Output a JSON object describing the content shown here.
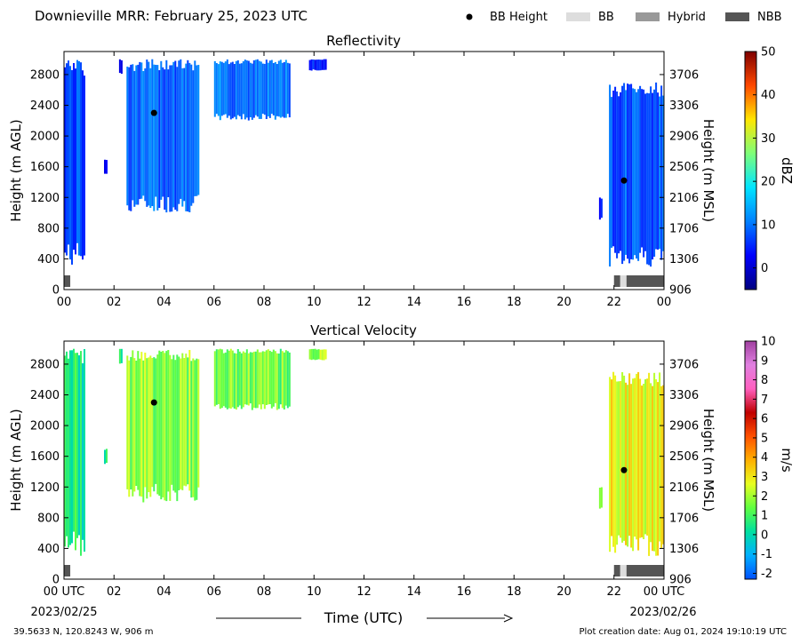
{
  "header": {
    "title": "Downieville MRR:  February 25, 2023 UTC",
    "legend": [
      {
        "label": "BB Height",
        "kind": "dot",
        "color": "#000000"
      },
      {
        "label": "BB",
        "kind": "box",
        "color": "#dddddd"
      },
      {
        "label": "Hybrid",
        "kind": "box",
        "color": "#999999"
      },
      {
        "label": "NBB",
        "kind": "box",
        "color": "#555555"
      }
    ]
  },
  "footer": {
    "location": "39.5633 N, 120.8243 W, 906 m",
    "created": "Plot creation date: Aug 01, 2024 19:10:19 UTC",
    "time_label": "Time (UTC)",
    "start_date": "2023/02/25",
    "end_date": "2023/02/26"
  },
  "colors": {
    "reflectivity_ramp": [
      "#00007f",
      "#0000ff",
      "#0080ff",
      "#00e5ff",
      "#7dff7a",
      "#ffe600",
      "#ff4800",
      "#7f0000"
    ],
    "velocity_ramp": [
      "#0050ff",
      "#00b0ff",
      "#00e0a0",
      "#60ff40",
      "#e8ff20",
      "#ffb000",
      "#ff5000",
      "#c00000",
      "#ff60c0",
      "#e080e0",
      "#a040a0"
    ]
  },
  "chart_data": [
    {
      "type": "heatmap",
      "title": "Reflectivity",
      "ylabel": "Height (m AGL)",
      "ylabel_right": "Height (m MSL)",
      "xlim": [
        0,
        24
      ],
      "ylim": [
        0,
        3100
      ],
      "xticks": [
        "00",
        "02",
        "04",
        "06",
        "08",
        "10",
        "12",
        "14",
        "16",
        "18",
        "20",
        "22",
        "00"
      ],
      "yticks": [
        0,
        400,
        800,
        1200,
        1600,
        2000,
        2400,
        2800
      ],
      "yticks_right": [
        "906",
        "1306",
        "1706",
        "2106",
        "2506",
        "2906",
        "3306",
        "3706"
      ],
      "colorbar": {
        "label": "dBZ",
        "min": -5,
        "max": 50,
        "ticks": [
          50,
          40,
          30,
          20,
          10,
          0
        ]
      },
      "regions": [
        {
          "x0": 0.0,
          "x1": 0.8,
          "y0": 300,
          "y1": 3000,
          "value": 7
        },
        {
          "x0": 1.6,
          "x1": 1.7,
          "y0": 1500,
          "y1": 1700,
          "value": 4
        },
        {
          "x0": 2.2,
          "x1": 2.3,
          "y0": 2800,
          "y1": 3000,
          "value": 3
        },
        {
          "x0": 2.5,
          "x1": 5.4,
          "y0": 1000,
          "y1": 3000,
          "value": 9
        },
        {
          "x0": 6.0,
          "x1": 9.0,
          "y0": 2200,
          "y1": 3000,
          "value": 10
        },
        {
          "x0": 9.8,
          "x1": 10.5,
          "y0": 2850,
          "y1": 3000,
          "value": 5
        },
        {
          "x0": 21.4,
          "x1": 21.5,
          "y0": 900,
          "y1": 1200,
          "value": 3
        },
        {
          "x0": 21.8,
          "x1": 24.0,
          "y0": 300,
          "y1": 2700,
          "value": 8
        }
      ],
      "bb_height": [
        {
          "x": 3.6,
          "y": 2300
        },
        {
          "x": 22.4,
          "y": 1420
        }
      ],
      "bb_class": [
        {
          "x0": 0.0,
          "x1": 0.25,
          "class": "NBB"
        },
        {
          "x0": 22.0,
          "x1": 22.25,
          "class": "NBB"
        },
        {
          "x0": 22.25,
          "x1": 22.5,
          "class": "BB"
        },
        {
          "x0": 22.5,
          "x1": 24.0,
          "class": "NBB"
        }
      ]
    },
    {
      "type": "heatmap",
      "title": "Vertical Velocity",
      "ylabel": "Height (m AGL)",
      "ylabel_right": "Height (m MSL)",
      "xlim": [
        0,
        24
      ],
      "ylim": [
        0,
        3100
      ],
      "xticks": [
        "00 UTC",
        "02",
        "04",
        "06",
        "08",
        "10",
        "12",
        "14",
        "16",
        "18",
        "20",
        "22",
        "00 UTC"
      ],
      "yticks": [
        0,
        400,
        800,
        1200,
        1600,
        2000,
        2400,
        2800
      ],
      "yticks_right": [
        "906",
        "1306",
        "1706",
        "2106",
        "2506",
        "2906",
        "3306",
        "3706"
      ],
      "colorbar": {
        "label": "m/s",
        "min": -2.3,
        "max": 10,
        "ticks": [
          10,
          9,
          8,
          7,
          6,
          5,
          4,
          3,
          2,
          1,
          0,
          -1,
          -2
        ]
      },
      "regions": [
        {
          "x0": 0.0,
          "x1": 0.8,
          "y0": 300,
          "y1": 3000,
          "value": 0.5
        },
        {
          "x0": 1.6,
          "x1": 1.7,
          "y0": 1500,
          "y1": 1700,
          "value": 0.8
        },
        {
          "x0": 2.2,
          "x1": 2.3,
          "y0": 2800,
          "y1": 3000,
          "value": 1
        },
        {
          "x0": 2.5,
          "x1": 5.4,
          "y0": 1000,
          "y1": 3000,
          "value": 1.8
        },
        {
          "x0": 6.0,
          "x1": 9.0,
          "y0": 2200,
          "y1": 3000,
          "value": 1.5
        },
        {
          "x0": 9.8,
          "x1": 10.5,
          "y0": 2850,
          "y1": 3000,
          "value": 1.8
        },
        {
          "x0": 21.4,
          "x1": 21.5,
          "y0": 900,
          "y1": 1200,
          "value": 2.2
        },
        {
          "x0": 21.8,
          "x1": 24.0,
          "y0": 300,
          "y1": 2700,
          "value": 2.8
        }
      ],
      "bb_height": [
        {
          "x": 3.6,
          "y": 2300
        },
        {
          "x": 22.4,
          "y": 1420
        }
      ],
      "bb_class": [
        {
          "x0": 0.0,
          "x1": 0.25,
          "class": "NBB"
        },
        {
          "x0": 22.0,
          "x1": 22.25,
          "class": "NBB"
        },
        {
          "x0": 22.25,
          "x1": 22.5,
          "class": "BB"
        },
        {
          "x0": 22.5,
          "x1": 24.0,
          "class": "NBB"
        }
      ]
    }
  ]
}
